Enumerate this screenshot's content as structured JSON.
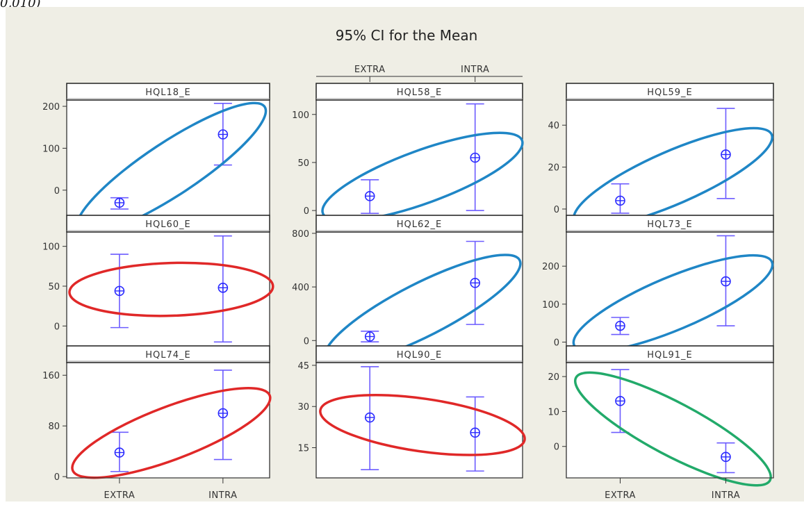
{
  "corner_text": "0,010)",
  "chart_data": {
    "type": "scatter",
    "title": "95% CI for the Mean",
    "categories": [
      "EXTRA",
      "INTRA"
    ],
    "grid": false,
    "panels": [
      {
        "name": "HQL18_E",
        "yticks": [
          "0",
          "100",
          "200"
        ],
        "ylim": [
          -60,
          215
        ],
        "means": [
          -30,
          133
        ],
        "lower": [
          -45,
          60
        ],
        "upper": [
          -18,
          207
        ],
        "ellipse": "blue"
      },
      {
        "name": "HQL58_E",
        "yticks": [
          "0",
          "50",
          "100"
        ],
        "ylim": [
          -5,
          115
        ],
        "means": [
          15,
          55
        ],
        "lower": [
          -3,
          0
        ],
        "upper": [
          32,
          111
        ],
        "ellipse": "blue"
      },
      {
        "name": "HQL59_E",
        "yticks": [
          "0",
          "20",
          "40"
        ],
        "ylim": [
          -3,
          52
        ],
        "means": [
          4,
          26
        ],
        "lower": [
          -2,
          5
        ],
        "upper": [
          12,
          48
        ],
        "ellipse": "blue"
      },
      {
        "name": "HQL60_E",
        "yticks": [
          "0",
          "50",
          "100"
        ],
        "ylim": [
          -25,
          118
        ],
        "means": [
          44,
          48
        ],
        "lower": [
          -2,
          -20
        ],
        "upper": [
          90,
          113
        ],
        "ellipse": "red"
      },
      {
        "name": "HQL62_E",
        "yticks": [
          "0",
          "400",
          "800"
        ],
        "ylim": [
          -40,
          810
        ],
        "means": [
          30,
          430
        ],
        "lower": [
          -10,
          120
        ],
        "upper": [
          70,
          740
        ],
        "ellipse": "blue"
      },
      {
        "name": "HQL73_E",
        "yticks": [
          "0",
          "100",
          "200"
        ],
        "ylim": [
          -10,
          290
        ],
        "means": [
          43,
          160
        ],
        "lower": [
          20,
          43
        ],
        "upper": [
          65,
          280
        ],
        "ellipse": "blue"
      },
      {
        "name": "HQL74_E",
        "yticks": [
          "0",
          "80",
          "160"
        ],
        "ylim": [
          -2,
          180
        ],
        "means": [
          38,
          100
        ],
        "lower": [
          8,
          27
        ],
        "upper": [
          70,
          168
        ],
        "ellipse": "red"
      },
      {
        "name": "HQL90_E",
        "yticks": [
          "15",
          "30",
          "45"
        ],
        "ylim": [
          4,
          46
        ],
        "means": [
          26,
          20.5
        ],
        "lower": [
          7,
          6.5
        ],
        "upper": [
          44.5,
          33.5
        ],
        "ellipse": "red"
      },
      {
        "name": "HQL91_E",
        "yticks": [
          "0",
          "10",
          "20"
        ],
        "ylim": [
          -9,
          24
        ],
        "means": [
          13,
          -3
        ],
        "lower": [
          4,
          -7.5
        ],
        "upper": [
          22,
          1
        ],
        "ellipse": "green"
      }
    ],
    "colors": {
      "panel_bg": "#ffffff",
      "outer_bg": "#efeee5",
      "ci_line": "#6c5cff",
      "ci_marker": "#2a2aff",
      "blue": "#1f86c6",
      "red": "#e02828",
      "green": "#22aa6a"
    }
  }
}
